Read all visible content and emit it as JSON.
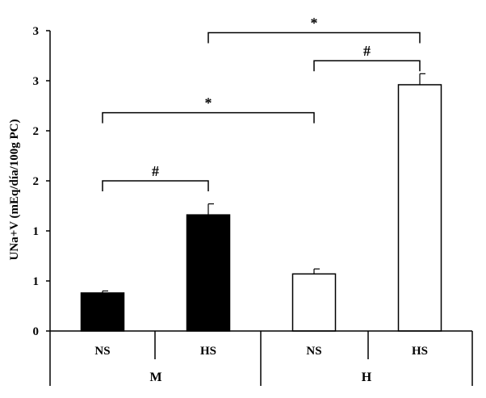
{
  "chart_data": {
    "type": "bar",
    "ylabel": "UNa+V (mEq/día/100g PC)",
    "y_tick_labels": [
      "0",
      "1",
      "1",
      "2",
      "2",
      "3",
      "3"
    ],
    "y_tick_values": [
      0,
      0.5,
      1,
      1.5,
      2,
      2.5,
      3
    ],
    "ylim": [
      0,
      3
    ],
    "grid": false,
    "categories": [
      "NS",
      "HS",
      "NS",
      "HS"
    ],
    "groups": [
      {
        "label": "M",
        "members": [
          0,
          1
        ]
      },
      {
        "label": "H",
        "members": [
          2,
          3
        ]
      }
    ],
    "values": [
      0.38,
      1.16,
      0.57,
      2.46
    ],
    "errors": [
      0.02,
      0.11,
      0.05,
      0.11
    ],
    "bar_colors": [
      "#000000",
      "#000000",
      "#ffffff",
      "#ffffff"
    ],
    "significance": [
      {
        "from": 0,
        "to": 1,
        "symbol": "#",
        "level": 1.5
      },
      {
        "from": 0,
        "to": 2,
        "symbol": "*",
        "level": 2.18
      },
      {
        "from": 2,
        "to": 3,
        "symbol": "#",
        "level": 2.7
      },
      {
        "from": 1,
        "to": 3,
        "symbol": "*",
        "level": 2.98
      }
    ]
  }
}
